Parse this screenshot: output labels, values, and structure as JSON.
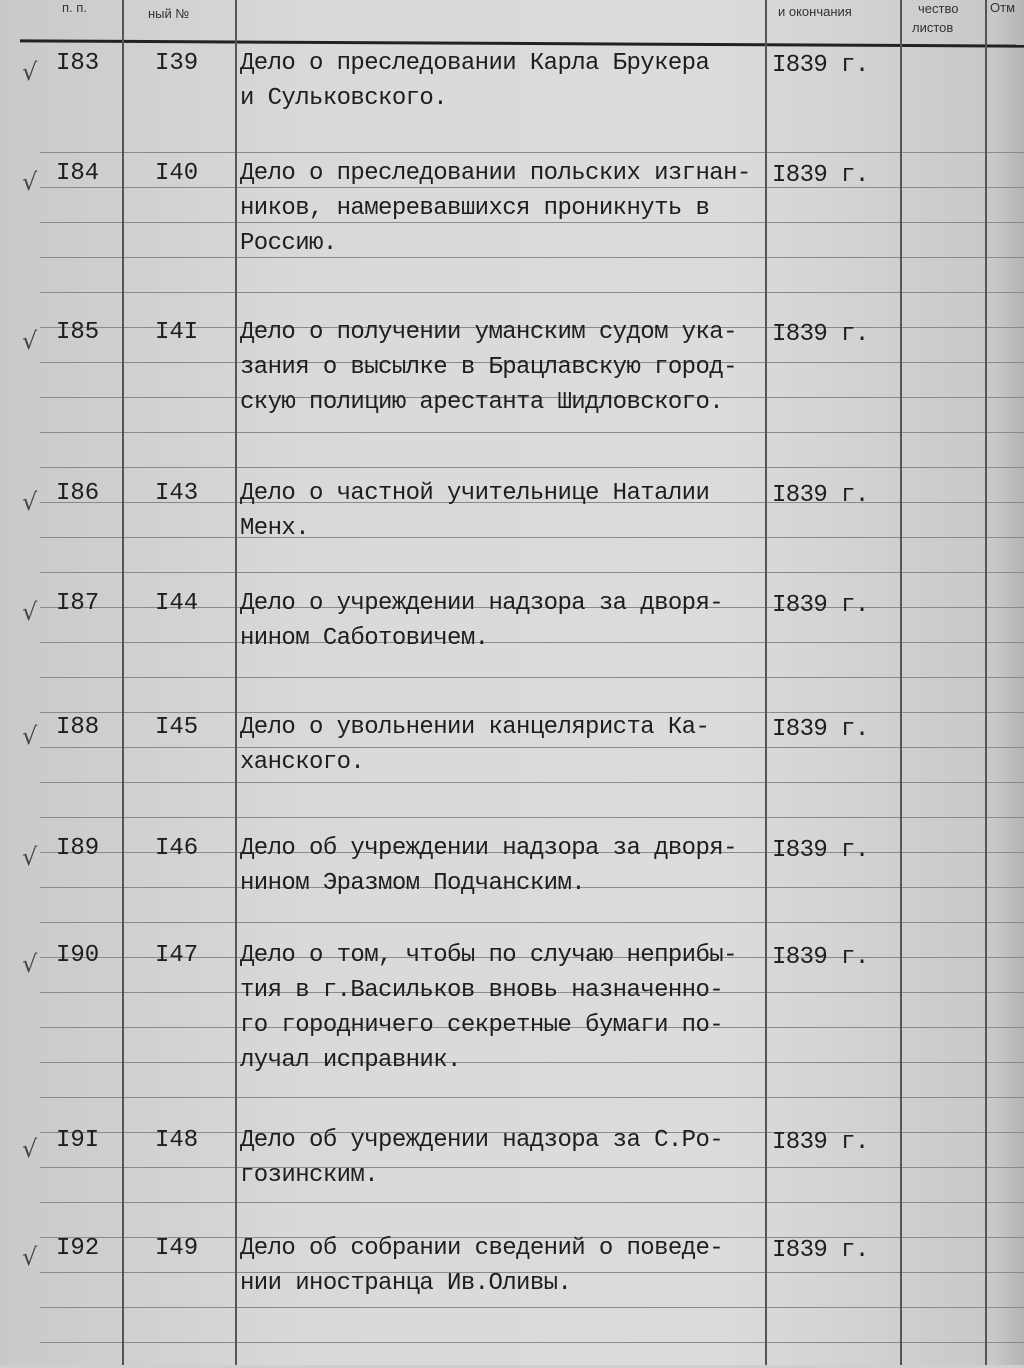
{
  "header": {
    "col_pp": "п. п.",
    "col_num": "ный №",
    "col_dates": "и окончания",
    "col_sheets_top": "чество",
    "col_sheets": "листов",
    "col_notes": "Отм"
  },
  "rows": [
    {
      "check": "√",
      "pp": "I83",
      "num": "I39",
      "lines": [
        "Дело о преследовании Карла Брукера",
        "и Сульковского."
      ],
      "date": "I839 г."
    },
    {
      "check": "√",
      "pp": "I84",
      "num": "I40",
      "lines": [
        "Дело о преследовании польских изгнан-",
        "ников, намеревавшихся проникнуть в",
        "Россию."
      ],
      "date": "I839 г."
    },
    {
      "check": "√",
      "pp": "I85",
      "num": "I4I",
      "lines": [
        "Дело о получении уманским судом ука-",
        "зания о высылке в Брацлавскую город-",
        "скую полицию арестанта Шидловского."
      ],
      "date": "I839 г."
    },
    {
      "check": "√",
      "pp": "I86",
      "num": "I43",
      "lines": [
        "Дело о частной учительнице Наталии",
        "Менх."
      ],
      "date": "I839 г."
    },
    {
      "check": "√",
      "pp": "I87",
      "num": "I44",
      "lines": [
        "Дело о учреждении надзора за дворя-",
        "нином Саботовичем."
      ],
      "date": "I839 г."
    },
    {
      "check": "√",
      "pp": "I88",
      "num": "I45",
      "lines": [
        "Дело о увольнении канцеляриста Ка-",
        "ханского."
      ],
      "date": "I839 г."
    },
    {
      "check": "√",
      "pp": "I89",
      "num": "I46",
      "lines": [
        "Дело об учреждении надзора за дворя-",
        "нином Эразмом Подчанским."
      ],
      "date": "I839 г."
    },
    {
      "check": "√",
      "pp": "I90",
      "num": "I47",
      "lines": [
        "Дело о том, чтобы по случаю неприбы-",
        "тия в г.Васильков вновь назначенно-",
        "го городничего секретные бумаги по-",
        "лучал исправник."
      ],
      "date": "I839 г."
    },
    {
      "check": "√",
      "pp": "I9I",
      "num": "I48",
      "lines": [
        "Дело об учреждении надзора за С.Ро-",
        "гозинским."
      ],
      "date": "I839 г."
    },
    {
      "check": "√",
      "pp": "I92",
      "num": "I49",
      "lines": [
        "Дело об собрании сведений о поведе-",
        "нии иностранца Ив.Оливы."
      ],
      "date": "I839 г."
    }
  ]
}
